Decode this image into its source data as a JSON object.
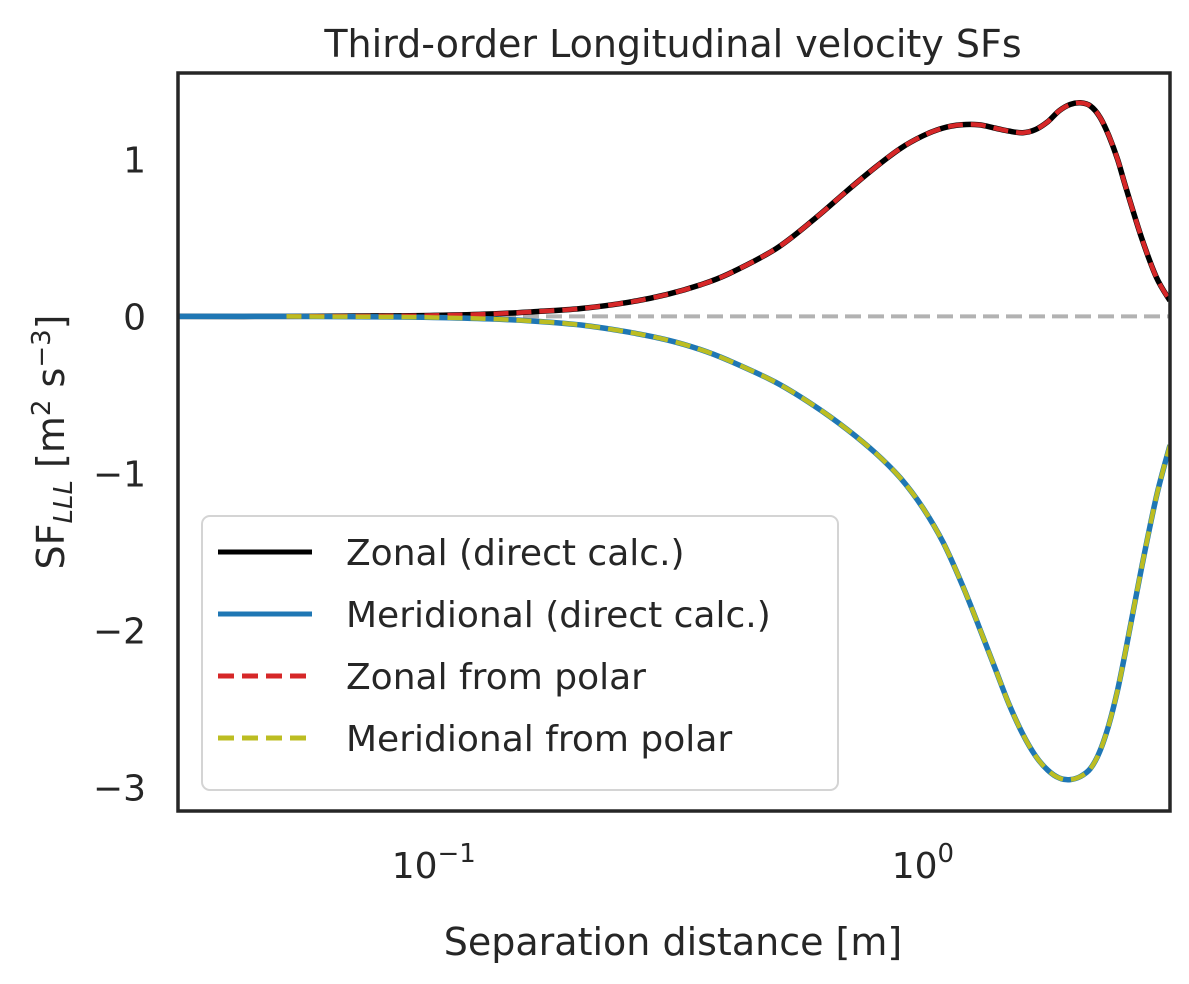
{
  "chart_data": {
    "type": "line",
    "title": "Third-order Longitudinal velocity SFs",
    "xlabel": "Separation distance [m]",
    "ylabel": {
      "base": "SF",
      "sub": "LLL",
      "units_open": " [m",
      "sup1": "2",
      "units_mid": " s",
      "sup2": "−3",
      "units_close": "]"
    },
    "xscale": "log",
    "xlim": [
      0.03,
      3.2
    ],
    "ylim": [
      -3.15,
      1.55
    ],
    "grid": false,
    "xticks": [
      {
        "value": 0.1,
        "base": "10",
        "exp": "−1"
      },
      {
        "value": 1,
        "base": "10",
        "exp": "0"
      }
    ],
    "yticks": [
      {
        "value": 1,
        "label": "1"
      },
      {
        "value": 0,
        "label": "0"
      },
      {
        "value": -1,
        "label": "−1"
      },
      {
        "value": -2,
        "label": "−2"
      },
      {
        "value": -3,
        "label": "−3"
      }
    ],
    "reference_line": {
      "y": 0,
      "color": "#b2b2b2",
      "style": "dashed"
    },
    "legend": {
      "position": "lower-left"
    },
    "series": [
      {
        "name": "Zonal (direct calc.)",
        "color": "#000000",
        "style": "solid",
        "x": [
          0.03,
          0.05,
          0.08,
          0.1,
          0.13,
          0.16,
          0.2,
          0.25,
          0.3,
          0.35,
          0.4,
          0.5,
          0.6,
          0.7,
          0.8,
          0.9,
          1.0,
          1.1,
          1.2,
          1.3,
          1.4,
          1.5,
          1.6,
          1.7,
          1.8,
          1.9,
          2.0,
          2.1,
          2.2,
          2.3,
          2.4,
          2.5,
          2.6,
          2.8,
          3.0,
          3.2
        ],
        "y": [
          0.0,
          0.0,
          0.003,
          0.006,
          0.015,
          0.03,
          0.05,
          0.09,
          0.14,
          0.2,
          0.27,
          0.43,
          0.62,
          0.8,
          0.95,
          1.07,
          1.15,
          1.2,
          1.22,
          1.22,
          1.2,
          1.18,
          1.17,
          1.19,
          1.24,
          1.31,
          1.35,
          1.36,
          1.34,
          1.27,
          1.15,
          1.0,
          0.82,
          0.5,
          0.25,
          0.1
        ]
      },
      {
        "name": "Meridional (direct calc.)",
        "color": "#1f77b4",
        "style": "solid",
        "x": [
          0.03,
          0.05,
          0.08,
          0.1,
          0.13,
          0.16,
          0.2,
          0.25,
          0.3,
          0.35,
          0.4,
          0.5,
          0.6,
          0.7,
          0.8,
          0.9,
          1.0,
          1.1,
          1.2,
          1.3,
          1.4,
          1.5,
          1.6,
          1.7,
          1.8,
          1.9,
          2.0,
          2.1,
          2.2,
          2.3,
          2.4,
          2.5,
          2.6,
          2.8,
          3.0,
          3.2
        ],
        "y": [
          0.0,
          0.0,
          -0.003,
          -0.007,
          -0.016,
          -0.03,
          -0.055,
          -0.1,
          -0.15,
          -0.21,
          -0.28,
          -0.42,
          -0.57,
          -0.72,
          -0.87,
          -1.03,
          -1.22,
          -1.44,
          -1.7,
          -1.97,
          -2.23,
          -2.47,
          -2.66,
          -2.8,
          -2.89,
          -2.94,
          -2.95,
          -2.93,
          -2.88,
          -2.77,
          -2.6,
          -2.38,
          -2.12,
          -1.6,
          -1.15,
          -0.82
        ]
      },
      {
        "name": "Zonal from polar",
        "color": "#d62728",
        "style": "dashed",
        "x": [
          0.05,
          0.08,
          0.1,
          0.13,
          0.16,
          0.2,
          0.25,
          0.3,
          0.35,
          0.4,
          0.5,
          0.6,
          0.7,
          0.8,
          0.9,
          1.0,
          1.1,
          1.2,
          1.3,
          1.4,
          1.5,
          1.6,
          1.7,
          1.8,
          1.9,
          2.0,
          2.1,
          2.2,
          2.3,
          2.4,
          2.5,
          2.6,
          2.8,
          3.0,
          3.2
        ],
        "y": [
          0.0,
          0.003,
          0.006,
          0.015,
          0.03,
          0.05,
          0.09,
          0.14,
          0.2,
          0.27,
          0.43,
          0.62,
          0.8,
          0.95,
          1.07,
          1.15,
          1.2,
          1.22,
          1.22,
          1.2,
          1.18,
          1.17,
          1.19,
          1.24,
          1.31,
          1.35,
          1.36,
          1.34,
          1.27,
          1.15,
          1.0,
          0.82,
          0.5,
          0.25,
          0.1
        ]
      },
      {
        "name": "Meridional from polar",
        "color": "#bcbd22",
        "style": "dashed",
        "x": [
          0.05,
          0.08,
          0.1,
          0.13,
          0.16,
          0.2,
          0.25,
          0.3,
          0.35,
          0.4,
          0.5,
          0.6,
          0.7,
          0.8,
          0.9,
          1.0,
          1.1,
          1.2,
          1.3,
          1.4,
          1.5,
          1.6,
          1.7,
          1.8,
          1.9,
          2.0,
          2.1,
          2.2,
          2.3,
          2.4,
          2.5,
          2.6,
          2.8,
          3.0,
          3.2
        ],
        "y": [
          0.0,
          -0.003,
          -0.007,
          -0.016,
          -0.03,
          -0.055,
          -0.1,
          -0.15,
          -0.21,
          -0.28,
          -0.42,
          -0.57,
          -0.72,
          -0.87,
          -1.03,
          -1.22,
          -1.44,
          -1.7,
          -1.97,
          -2.23,
          -2.47,
          -2.66,
          -2.8,
          -2.89,
          -2.94,
          -2.95,
          -2.93,
          -2.88,
          -2.77,
          -2.6,
          -2.38,
          -2.12,
          -1.6,
          -1.15,
          -0.82
        ]
      }
    ]
  }
}
